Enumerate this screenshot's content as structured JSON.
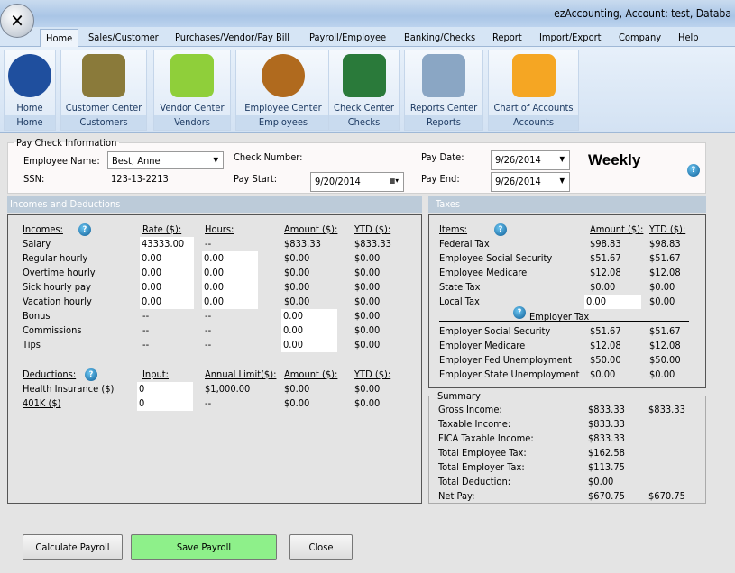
{
  "window": {
    "title": "ezAccounting, Account: test, Databa"
  },
  "menu": [
    "Home",
    "Sales/Customer",
    "Purchases/Vendor/Pay Bill",
    "Payroll/Employee",
    "Banking/Checks",
    "Report",
    "Import/Export",
    "Company",
    "Help"
  ],
  "ribbon": [
    {
      "label": "Home",
      "group": "Home",
      "icon": "home-icon",
      "color": "#1f4f9e"
    },
    {
      "label": "Customer Center",
      "group": "Customers",
      "icon": "customer-folder-icon",
      "color": "#8a7a3a"
    },
    {
      "label": "Vendor Center",
      "group": "Vendors",
      "icon": "vendor-book-icon",
      "color": "#8fcf3a"
    },
    {
      "label": "Employee Center",
      "group": "Employees",
      "icon": "employee-group-icon",
      "color": "#b06a1e"
    },
    {
      "label": "Check Center",
      "group": "Checks",
      "icon": "checkbook-icon",
      "color": "#2a7a3a"
    },
    {
      "label": "Reports Center",
      "group": "Reports",
      "icon": "reports-binder-icon",
      "color": "#8aa6c4"
    },
    {
      "label": "Chart of Accounts",
      "group": "Accounts",
      "icon": "accounts-folder-icon",
      "color": "#f5a623"
    }
  ],
  "paycheck": {
    "legend": "Pay Check Information",
    "employee_label": "Employee Name:",
    "employee": "Best, Anne",
    "ssn_label": "SSN:",
    "ssn": "123-13-2213",
    "check_label": "Check Number:",
    "start_label": "Pay Start:",
    "pay_start": "9/20/2014",
    "date_label": "Pay Date:",
    "pay_date": "9/26/2014",
    "end_label": "Pay End:",
    "pay_end": "9/26/2014",
    "frequency": "Weekly"
  },
  "incomes": {
    "header": "Incomes and Deductions",
    "cols": [
      "Incomes:",
      "Rate ($):",
      "Hours:",
      "Amount ($):",
      "YTD ($):"
    ],
    "rows": [
      [
        "Salary",
        "43333.00",
        "--",
        "$833.33",
        "$833.33"
      ],
      [
        "Regular hourly",
        "0.00",
        "0.00",
        "$0.00",
        "$0.00"
      ],
      [
        "Overtime hourly",
        "0.00",
        "0.00",
        "$0.00",
        "$0.00"
      ],
      [
        "Sick hourly pay",
        "0.00",
        "0.00",
        "$0.00",
        "$0.00"
      ],
      [
        "Vacation hourly",
        "0.00",
        "0.00",
        "$0.00",
        "$0.00"
      ],
      [
        "Bonus",
        "--",
        "--",
        "0.00",
        "$0.00"
      ],
      [
        "Commissions",
        "--",
        "--",
        "0.00",
        "$0.00"
      ],
      [
        "Tips",
        "--",
        "--",
        "0.00",
        "$0.00"
      ]
    ],
    "ded_cols": [
      "Deductions:",
      "Input:",
      "Annual Limit($):",
      "Amount ($):",
      "YTD ($):"
    ],
    "deductions": [
      [
        "Health Insurance  ($)",
        "0",
        "$1,000.00",
        "$0.00",
        "$0.00"
      ],
      [
        "401K  ($)",
        "0",
        "--",
        "$0.00",
        "$0.00"
      ]
    ]
  },
  "taxes": {
    "header": "Taxes",
    "cols": [
      "Items:",
      "Amount ($):",
      "YTD ($):"
    ],
    "employee": [
      [
        "Federal Tax",
        "$98.83",
        "$98.83"
      ],
      [
        "Employee Social Security",
        "$51.67",
        "$51.67"
      ],
      [
        "Employee Medicare",
        "$12.08",
        "$12.08"
      ],
      [
        "State Tax",
        "$0.00",
        "$0.00"
      ],
      [
        "Local Tax",
        "0.00",
        "$0.00"
      ]
    ],
    "employer_label": "Employer Tax",
    "employer": [
      [
        "Employer Social Security",
        "$51.67",
        "$51.67"
      ],
      [
        "Employer Medicare",
        "$12.08",
        "$12.08"
      ],
      [
        "Employer Fed Unemployment",
        "$50.00",
        "$50.00"
      ],
      [
        "Employer State Unemployment",
        "$0.00",
        "$0.00"
      ]
    ]
  },
  "summary": {
    "legend": "Summary",
    "rows": [
      [
        "Gross Income:",
        "$833.33",
        "$833.33"
      ],
      [
        "Taxable Income:",
        "$833.33",
        ""
      ],
      [
        "FICA Taxable Income:",
        "$833.33",
        ""
      ],
      [
        "Total Employee Tax:",
        "$162.58",
        ""
      ],
      [
        "Total Employer Tax:",
        "$113.75",
        ""
      ],
      [
        "Total Deduction:",
        "$0.00",
        ""
      ],
      [
        "Net Pay:",
        "$670.75",
        "$670.75"
      ]
    ]
  },
  "buttons": {
    "calculate": "Calculate Payroll",
    "save": "Save Payroll",
    "close": "Close"
  },
  "colors": {
    "save": "#8ef08a",
    "header": "#bccbd9"
  }
}
